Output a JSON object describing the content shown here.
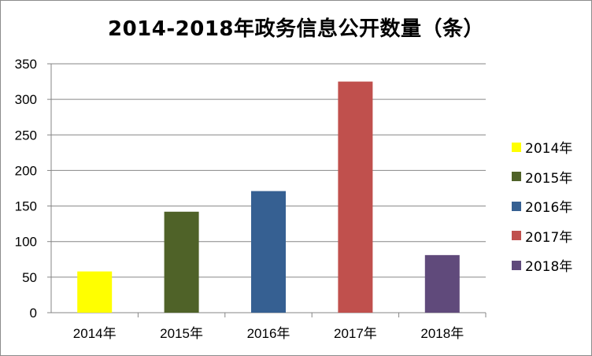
{
  "chart_data": {
    "type": "bar",
    "title": "2014-2018年政务信息公开数量（条）",
    "categories": [
      "2014年",
      "2015年",
      "2016年",
      "2017年",
      "2018年"
    ],
    "values": [
      58,
      142,
      171,
      325,
      81
    ],
    "colors": [
      "#ffff00",
      "#4f6228",
      "#366092",
      "#c0504d",
      "#604a7b"
    ],
    "ylim": [
      0,
      350
    ],
    "yticks": [
      0,
      50,
      100,
      150,
      200,
      250,
      300,
      350
    ],
    "grid": true,
    "legend_position": "right",
    "legend": [
      "2014年",
      "2015年",
      "2016年",
      "2017年",
      "2018年"
    ]
  }
}
